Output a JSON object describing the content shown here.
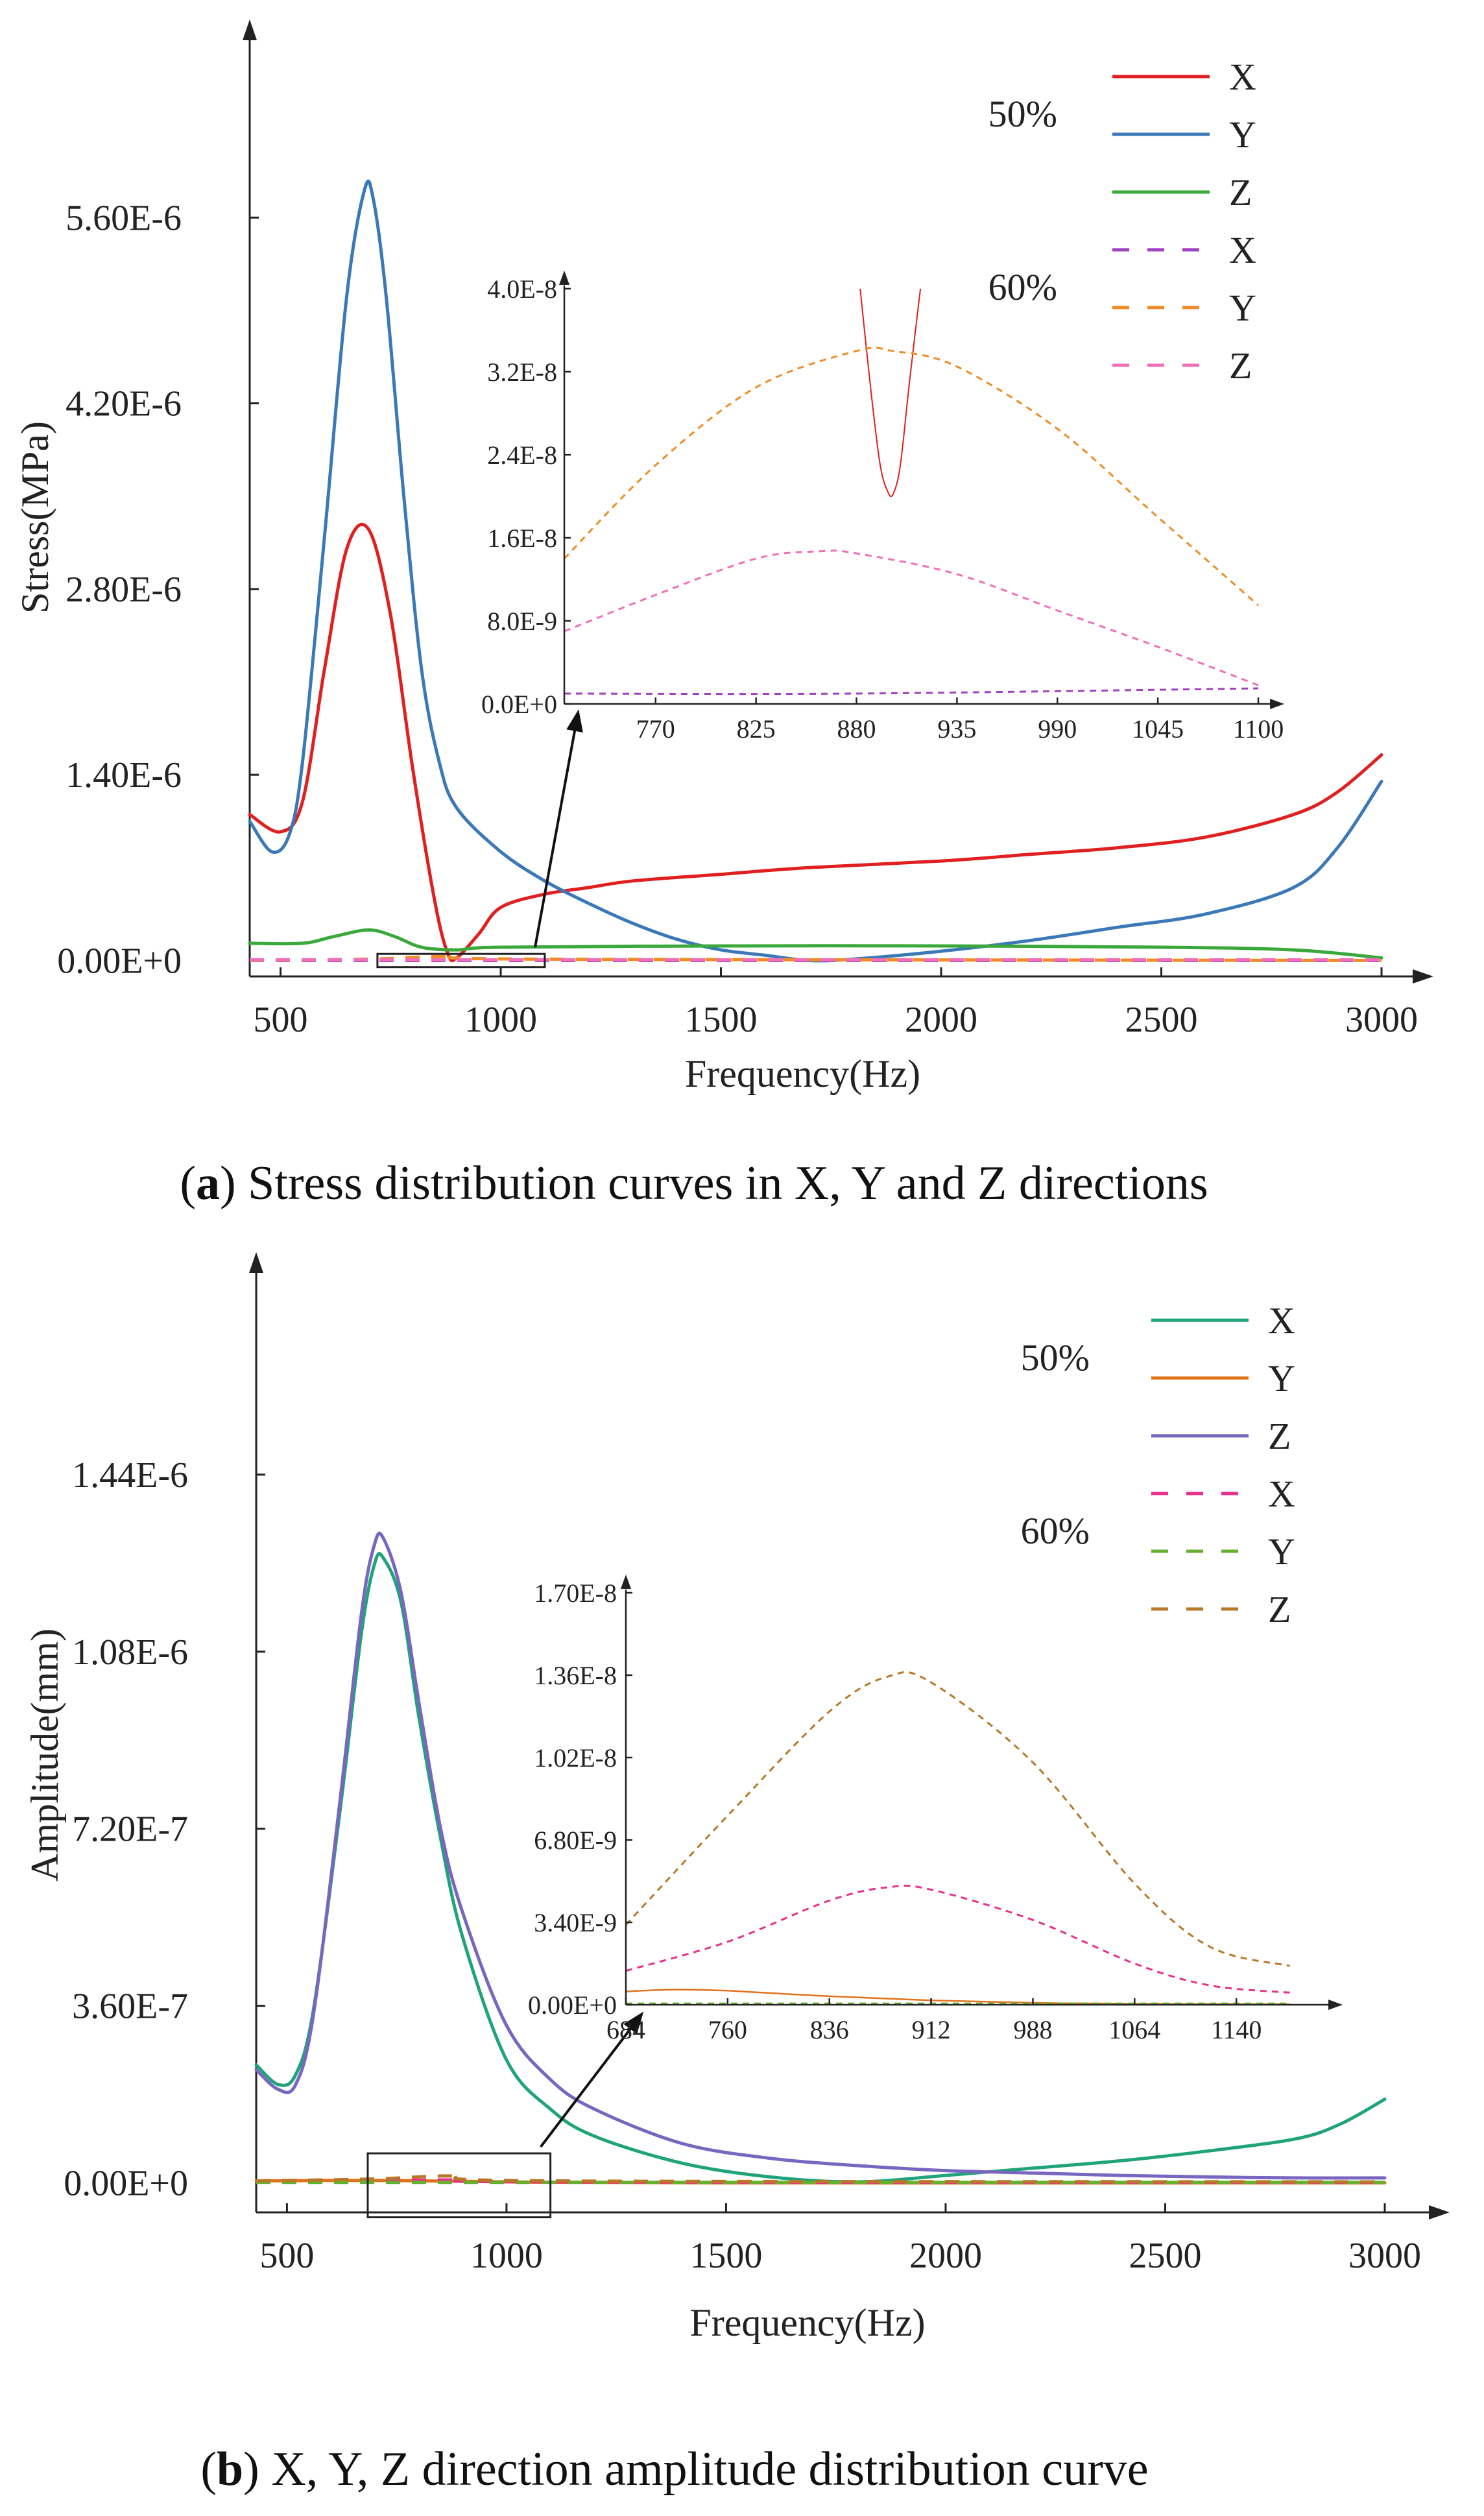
{
  "chart_data": [
    {
      "id": "a",
      "type": "line",
      "caption": {
        "letter": "a",
        "text": ") Stress distribution curves in X, Y and Z directions"
      },
      "xlabel": "Frequency(Hz)",
      "ylabel": "Stress(MPa)",
      "xlim": [
        430,
        3000
      ],
      "ylim": [
        -1.2e-07,
        6.8e-06
      ],
      "x_ticks": [
        500,
        1000,
        1500,
        2000,
        2500,
        3000
      ],
      "y_ticks": [
        {
          "value": 0,
          "label": "0.00E+0"
        },
        {
          "value": 1.4e-06,
          "label": "1.40E-6"
        },
        {
          "value": 2.8e-06,
          "label": "2.80E-6"
        },
        {
          "value": 4.2e-06,
          "label": "4.20E-6"
        },
        {
          "value": 5.6e-06,
          "label": "5.60E-6"
        }
      ],
      "legend": {
        "groups": [
          {
            "label": "50%",
            "entries": [
              {
                "label": "X",
                "color": "#e02020",
                "dash": false
              },
              {
                "label": "Y",
                "color": "#3a78b8",
                "dash": false
              },
              {
                "label": "Z",
                "color": "#3aa83a",
                "dash": false
              }
            ]
          },
          {
            "label": "60%",
            "entries": [
              {
                "label": "X",
                "color": "#a040c0",
                "dash": true
              },
              {
                "label": "Y",
                "color": "#f08c28",
                "dash": true
              },
              {
                "label": "Z",
                "color": "#f070b8",
                "dash": true
              }
            ]
          }
        ]
      },
      "series": [
        {
          "name": "50% X",
          "color": "#e02020",
          "dash": false,
          "x": [
            430,
            500,
            550,
            600,
            650,
            700,
            750,
            800,
            850,
            880,
            900,
            950,
            1000,
            1100,
            1200,
            1300,
            1500,
            1700,
            2000,
            2200,
            2400,
            2600,
            2800,
            2900,
            3000
          ],
          "y": [
            1.1e-06,
            9.7e-07,
            1.2e-06,
            2.2e-06,
            3.1e-06,
            3.25e-06,
            2.6e-06,
            1.45e-06,
            4.5e-07,
            5e-08,
            2e-08,
            2e-07,
            4e-07,
            5e-07,
            5.5e-07,
            6e-07,
            6.5e-07,
            7e-07,
            7.5e-07,
            8e-07,
            8.5e-07,
            9.3e-07,
            1.1e-06,
            1.27e-06,
            1.55e-06
          ]
        },
        {
          "name": "50% Y",
          "color": "#3a78b8",
          "dash": false,
          "x": [
            430,
            480,
            520,
            550,
            600,
            650,
            690,
            710,
            740,
            780,
            820,
            860,
            900,
            1000,
            1100,
            1200,
            1300,
            1400,
            1500,
            1600,
            1700,
            1800,
            2000,
            2200,
            2400,
            2600,
            2800,
            2900,
            3000
          ],
          "y": [
            1.05e-06,
            8.2e-07,
            9.5e-07,
            1.5e-06,
            3.2e-06,
            5e-06,
            5.8e-06,
            5.75e-06,
            5e-06,
            3.5e-06,
            2.2e-06,
            1.5e-06,
            1.15e-06,
            8.2e-07,
            6e-07,
            4.3e-07,
            2.8e-07,
            1.6e-07,
            8e-08,
            4e-08,
            0.0,
            1e-08,
            7e-08,
            1.5e-07,
            2.5e-07,
            3.5e-07,
            5.5e-07,
            8.5e-07,
            1.35e-06
          ]
        },
        {
          "name": "50% Z",
          "color": "#3aa83a",
          "dash": false,
          "x": [
            430,
            550,
            620,
            700,
            760,
            820,
            900,
            1000,
            1500,
            2000,
            2500,
            2800,
            3000
          ],
          "y": [
            1.3e-07,
            1.3e-07,
            1.8e-07,
            2.3e-07,
            1.8e-07,
            1e-07,
            8e-08,
            1e-07,
            1.1e-07,
            1.1e-07,
            1e-07,
            8e-08,
            2e-08
          ]
        },
        {
          "name": "60% X",
          "color": "#a040c0",
          "dash": true,
          "x": [
            430,
            3000
          ],
          "y": [
            0.0,
            0.0
          ]
        },
        {
          "name": "60% Y",
          "color": "#f08c28",
          "dash": true,
          "x": [
            430,
            700,
            880,
            1100,
            3000
          ],
          "y": [
            0.0,
            1e-08,
            3e-08,
            1e-08,
            0.0
          ]
        },
        {
          "name": "60% Z",
          "color": "#f070b8",
          "dash": true,
          "x": [
            430,
            3000
          ],
          "y": [
            5e-09,
            5e-09
          ]
        }
      ],
      "zoom_region": {
        "x": [
          720,
          1100
        ],
        "y": [
          -5e-08,
          5e-08
        ]
      },
      "inset": {
        "xlim": [
          720,
          1100
        ],
        "ylim": [
          0,
          4e-08
        ],
        "x_ticks": [
          770,
          825,
          880,
          935,
          990,
          1045,
          1100
        ],
        "y_ticks": [
          {
            "value": 0,
            "label": "0.0E+0"
          },
          {
            "value": 8e-09,
            "label": "8.0E-9"
          },
          {
            "value": 1.6e-08,
            "label": "1.6E-8"
          },
          {
            "value": 2.4e-08,
            "label": "2.4E-8"
          },
          {
            "value": 3.2e-08,
            "label": "3.2E-8"
          },
          {
            "value": 4e-08,
            "label": "4.0E-8"
          }
        ],
        "series": [
          {
            "name": "50% X",
            "color": "#e02020",
            "dash": false,
            "width": 2,
            "x": [
              882,
              888,
              893,
              897,
              900,
              904,
              909,
              915
            ],
            "y": [
              4e-08,
              3e-08,
              2.3e-08,
              2.05e-08,
              2.02e-08,
              2.3e-08,
              3.1e-08,
              4e-08
            ]
          },
          {
            "name": "60% Y",
            "color": "#f08c28",
            "dash": true,
            "x": [
              720,
              770,
              825,
              880,
              900,
              935,
              990,
              1045,
              1100
            ],
            "y": [
              1.4e-08,
              2.3e-08,
              3.05e-08,
              3.4e-08,
              3.4e-08,
              3.25e-08,
              2.65e-08,
              1.8e-08,
              9.5e-09
            ]
          },
          {
            "name": "60% Z",
            "color": "#f070b8",
            "dash": true,
            "x": [
              720,
              770,
              825,
              860,
              880,
              935,
              990,
              1045,
              1100
            ],
            "y": [
              7e-09,
              1.05e-08,
              1.4e-08,
              1.47e-08,
              1.45e-08,
              1.25e-08,
              9e-09,
              5.5e-09,
              1.8e-09
            ]
          },
          {
            "name": "60% X",
            "color": "#a040c0",
            "dash": true,
            "x": [
              720,
              880,
              1100
            ],
            "y": [
              1e-09,
              1e-09,
              1.5e-09
            ]
          }
        ]
      }
    },
    {
      "id": "b",
      "type": "line",
      "caption": {
        "letter": "b",
        "text": ") X, Y, Z direction amplitude distribution curve"
      },
      "xlabel": "Frequency(Hz)",
      "ylabel": "Amplitude(mm)",
      "xlim": [
        430,
        3000
      ],
      "ylim": [
        -6e-08,
        1.8e-06
      ],
      "x_ticks": [
        500,
        1000,
        1500,
        2000,
        2500,
        3000
      ],
      "y_ticks": [
        {
          "value": 0,
          "label": "0.00E+0"
        },
        {
          "value": 3.6e-07,
          "label": "3.60E-7"
        },
        {
          "value": 7.2e-07,
          "label": "7.20E-7"
        },
        {
          "value": 1.08e-06,
          "label": "1.08E-6"
        },
        {
          "value": 1.44e-06,
          "label": "1.44E-6"
        }
      ],
      "legend": {
        "groups": [
          {
            "label": "50%",
            "entries": [
              {
                "label": "X",
                "color": "#1fa37a",
                "dash": false
              },
              {
                "label": "Y",
                "color": "#e0731a",
                "dash": false
              },
              {
                "label": "Z",
                "color": "#7866c0",
                "dash": false
              }
            ]
          },
          {
            "label": "60%",
            "entries": [
              {
                "label": "X",
                "color": "#e8308c",
                "dash": true
              },
              {
                "label": "Y",
                "color": "#66b030",
                "dash": true
              },
              {
                "label": "Z",
                "color": "#b87828",
                "dash": true
              }
            ]
          }
        ]
      },
      "series": [
        {
          "name": "50% X",
          "color": "#1fa37a",
          "dash": false,
          "x": [
            430,
            480,
            520,
            560,
            620,
            670,
            700,
            720,
            760,
            800,
            850,
            900,
            1000,
            1100,
            1200,
            1400,
            1600,
            1800,
            2000,
            2200,
            2400,
            2600,
            2800,
            2900,
            3000
          ],
          "y": [
            2.4e-07,
            2e-07,
            2.2e-07,
            3.5e-07,
            7.5e-07,
            1.12e-06,
            1.26e-06,
            1.27e-06,
            1.18e-06,
            9.5e-07,
            7e-07,
            5e-07,
            2.5e-07,
            1.5e-07,
            9.5e-08,
            4e-08,
            1.2e-08,
            2e-09,
            1.5e-08,
            3e-08,
            4.5e-08,
            6.5e-08,
            9e-08,
            1.2e-07,
            1.7e-07
          ]
        },
        {
          "name": "50% Y",
          "color": "#e0731a",
          "dash": false,
          "x": [
            430,
            700,
            1000,
            1500,
            3000
          ],
          "y": [
            4e-09,
            5e-09,
            2e-09,
            0.0,
            0.0
          ]
        },
        {
          "name": "50% Z",
          "color": "#7866c0",
          "dash": false,
          "x": [
            430,
            480,
            520,
            560,
            620,
            670,
            700,
            720,
            760,
            800,
            850,
            900,
            1000,
            1100,
            1200,
            1400,
            1600,
            1800,
            2000,
            2200,
            2400,
            2600,
            2800,
            3000
          ],
          "y": [
            2.3e-07,
            1.9e-07,
            2e-07,
            3.4e-07,
            7.7e-07,
            1.16e-06,
            1.3e-06,
            1.31e-06,
            1.2e-06,
            9.8e-07,
            7.2e-07,
            5.5e-07,
            3.2e-07,
            2.1e-07,
            1.5e-07,
            8e-08,
            5e-08,
            3.5e-08,
            2.5e-08,
            2e-08,
            1.5e-08,
            1.2e-08,
            1e-08,
            1e-08
          ]
        },
        {
          "name": "60% X",
          "color": "#e8308c",
          "dash": true,
          "x": [
            430,
            700,
            880,
            1100,
            3000
          ],
          "y": [
            2e-09,
            4e-09,
            6e-09,
            2e-09,
            1e-09
          ]
        },
        {
          "name": "60% Y",
          "color": "#66b030",
          "dash": true,
          "x": [
            430,
            3000
          ],
          "y": [
            1e-09,
            1e-09
          ]
        },
        {
          "name": "60% Z",
          "color": "#b87828",
          "dash": true,
          "x": [
            430,
            700,
            880,
            1100,
            3000
          ],
          "y": [
            4e-09,
            8e-09,
            1.4e-08,
            4e-09,
            2e-09
          ]
        }
      ],
      "zoom_region": {
        "x": [
          684,
          1100
        ],
        "y": [
          -7e-08,
          6e-08
        ]
      },
      "inset": {
        "xlim": [
          684,
          1200
        ],
        "ylim": [
          0,
          1.7e-08
        ],
        "x_ticks": [
          684,
          760,
          836,
          912,
          988,
          1064,
          1140
        ],
        "y_ticks": [
          {
            "value": 0,
            "label": "0.00E+0"
          },
          {
            "value": 3.4e-09,
            "label": "3.40E-9"
          },
          {
            "value": 6.8e-09,
            "label": "6.80E-9"
          },
          {
            "value": 1.02e-08,
            "label": "1.02E-8"
          },
          {
            "value": 1.36e-08,
            "label": "1.36E-8"
          },
          {
            "value": 1.7e-08,
            "label": "1.70E-8"
          }
        ],
        "series": [
          {
            "name": "60% Z",
            "color": "#b87828",
            "dash": true,
            "x": [
              684,
              760,
              836,
              880,
              912,
              988,
              1064,
              1120,
              1180
            ],
            "y": [
              3.3e-09,
              7.8e-09,
              1.21e-08,
              1.355e-08,
              1.33e-08,
              1e-08,
              5e-09,
              2.4e-09,
              1.6e-09
            ]
          },
          {
            "name": "60% X",
            "color": "#e8308c",
            "dash": true,
            "x": [
              684,
              760,
              836,
              880,
              912,
              988,
              1064,
              1120,
              1180
            ],
            "y": [
              1.4e-09,
              2.6e-09,
              4.3e-09,
              4.85e-09,
              4.75e-09,
              3.5e-09,
              1.7e-09,
              8e-10,
              5e-10
            ]
          },
          {
            "name": "50% Y",
            "color": "#e0731a",
            "dash": false,
            "width": 2.5,
            "x": [
              684,
              720,
              760,
              836,
              912,
              988,
              1064,
              1180
            ],
            "y": [
              5.5e-10,
              6.2e-10,
              5.8e-10,
              3.5e-10,
              1.8e-10,
              8e-11,
              4e-11,
              2e-11
            ]
          },
          {
            "name": "60% Y",
            "color": "#66b030",
            "dash": true,
            "x": [
              684,
              1180
            ],
            "y": [
              5e-11,
              5e-11
            ]
          }
        ]
      }
    }
  ]
}
